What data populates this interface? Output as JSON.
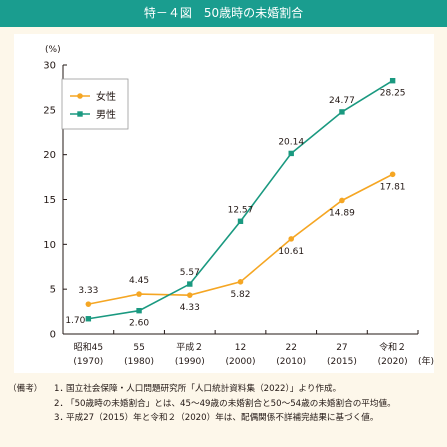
{
  "header": {
    "figure_no": "特－４図",
    "title": "50歳時の未婚割合"
  },
  "chart_data": {
    "type": "line",
    "unit": "(%)",
    "x_unit": "(年)",
    "categories": [
      {
        "line1": "昭和45",
        "line2": "(1970)"
      },
      {
        "line1": "55",
        "line2": "(1980)"
      },
      {
        "line1": "平成２",
        "line2": "(1990)"
      },
      {
        "line1": "12",
        "line2": "(2000)"
      },
      {
        "line1": "22",
        "line2": "(2010)"
      },
      {
        "line1": "27",
        "line2": "(2015)"
      },
      {
        "line1": "令和２",
        "line2": "(2020)"
      }
    ],
    "series": [
      {
        "name": "女性",
        "color": "#f5a623",
        "marker": "circle",
        "values": [
          3.33,
          4.45,
          4.33,
          5.82,
          10.61,
          14.89,
          17.81
        ],
        "labels": [
          "3.33",
          "4.45",
          "4.33",
          "5.82",
          "10.61",
          "14.89",
          "17.81"
        ]
      },
      {
        "name": "男性",
        "color": "#1a9980",
        "marker": "square",
        "values": [
          1.7,
          2.6,
          5.57,
          12.57,
          20.14,
          24.77,
          28.25
        ],
        "labels": [
          "1.70",
          "2.60",
          "5.57",
          "12.57",
          "20.14",
          "24.77",
          "28.25"
        ]
      }
    ],
    "yticks": [
      "0",
      "5",
      "10",
      "15",
      "20",
      "25",
      "30"
    ],
    "ylim": [
      0,
      30
    ],
    "grid": false,
    "legend_position": "top-left"
  },
  "notes": {
    "prefix": "（備考）",
    "items": [
      {
        "num": "1．",
        "text": "国立社会保障・人口問題研究所「人口統計資料集（2022）」より作成。"
      },
      {
        "num": "2．",
        "text": "「50歳時の未婚割合」とは、45～49歳の未婚割合と50～54歳の未婚割合の平均値。"
      },
      {
        "num": "3．",
        "text": "平成27（2015）年と令和２（2020）年は、配偶関係不詳補完結果に基づく値。"
      }
    ]
  }
}
